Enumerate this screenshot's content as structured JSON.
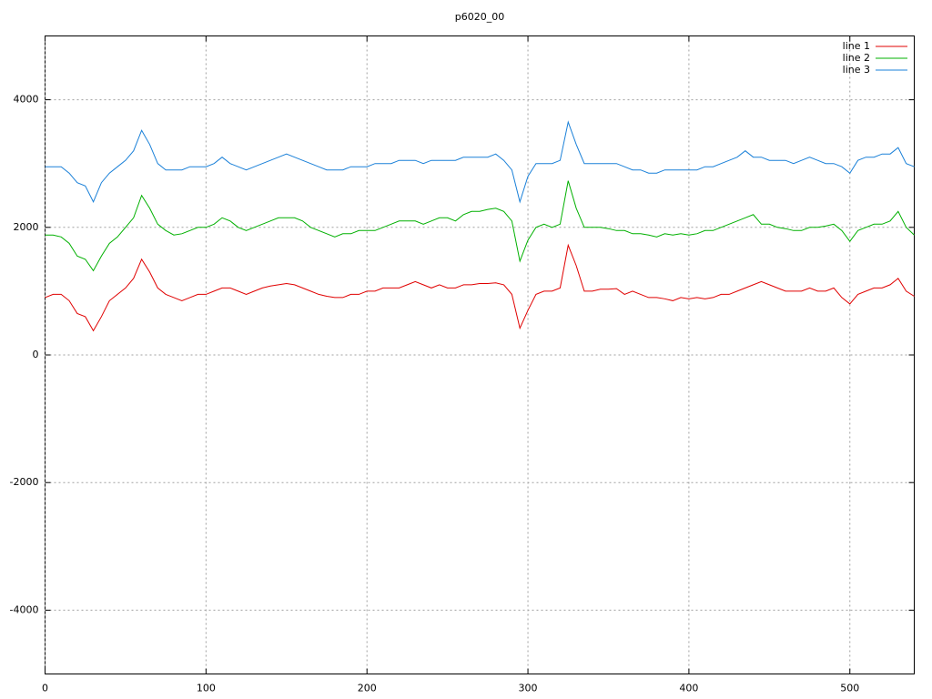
{
  "chart_data": {
    "type": "line",
    "title": "p6020_00",
    "x": [
      0,
      5,
      10,
      15,
      20,
      25,
      30,
      35,
      40,
      45,
      50,
      55,
      60,
      65,
      70,
      75,
      80,
      85,
      90,
      95,
      100,
      105,
      110,
      115,
      120,
      125,
      130,
      135,
      140,
      145,
      150,
      155,
      160,
      165,
      170,
      175,
      180,
      185,
      190,
      195,
      200,
      205,
      210,
      215,
      220,
      225,
      230,
      235,
      240,
      245,
      250,
      255,
      260,
      265,
      270,
      275,
      280,
      285,
      290,
      295,
      300,
      305,
      310,
      315,
      320,
      325,
      330,
      335,
      340,
      345,
      350,
      355,
      360,
      365,
      370,
      375,
      380,
      385,
      390,
      395,
      400,
      405,
      410,
      415,
      420,
      425,
      430,
      435,
      440,
      445,
      450,
      455,
      460,
      465,
      470,
      475,
      480,
      485,
      490,
      495,
      500,
      505,
      510,
      515,
      520,
      525,
      530,
      535,
      540
    ],
    "series": [
      {
        "name": "line 1",
        "color": "#e00000",
        "values": [
          900,
          950,
          950,
          850,
          650,
          600,
          380,
          600,
          850,
          950,
          1050,
          1200,
          1500,
          1300,
          1050,
          950,
          900,
          850,
          900,
          950,
          950,
          1000,
          1050,
          1050,
          1000,
          950,
          1000,
          1050,
          1080,
          1100,
          1120,
          1100,
          1050,
          1000,
          950,
          920,
          900,
          900,
          950,
          950,
          1000,
          1000,
          1050,
          1050,
          1050,
          1100,
          1150,
          1100,
          1050,
          1100,
          1050,
          1050,
          1100,
          1100,
          1120,
          1120,
          1130,
          1100,
          950,
          420,
          700,
          950,
          1000,
          1000,
          1050,
          1720,
          1400,
          1000,
          1000,
          1030,
          1030,
          1040,
          950,
          1000,
          950,
          900,
          900,
          880,
          850,
          900,
          880,
          900,
          880,
          900,
          950,
          950,
          1000,
          1050,
          1100,
          1150,
          1100,
          1050,
          1000,
          1000,
          1000,
          1050,
          1000,
          1000,
          1050,
          900,
          800,
          950,
          1000,
          1050,
          1050,
          1100,
          1200,
          1000,
          920
        ]
      },
      {
        "name": "line 2",
        "color": "#00b000",
        "values": [
          1880,
          1880,
          1850,
          1750,
          1550,
          1500,
          1320,
          1550,
          1750,
          1850,
          2000,
          2150,
          2500,
          2300,
          2050,
          1950,
          1880,
          1900,
          1950,
          2000,
          2000,
          2050,
          2150,
          2100,
          2000,
          1950,
          2000,
          2050,
          2100,
          2150,
          2150,
          2150,
          2100,
          2000,
          1950,
          1900,
          1850,
          1900,
          1900,
          1950,
          1950,
          1950,
          2000,
          2050,
          2100,
          2100,
          2100,
          2050,
          2100,
          2150,
          2150,
          2100,
          2200,
          2250,
          2250,
          2280,
          2300,
          2250,
          2100,
          1470,
          1800,
          2000,
          2050,
          2000,
          2050,
          2730,
          2300,
          2000,
          2000,
          2000,
          1980,
          1950,
          1950,
          1900,
          1900,
          1880,
          1850,
          1900,
          1880,
          1900,
          1880,
          1900,
          1950,
          1950,
          2000,
          2050,
          2100,
          2150,
          2200,
          2050,
          2050,
          2000,
          1980,
          1950,
          1950,
          2000,
          2000,
          2020,
          2050,
          1950,
          1780,
          1950,
          2000,
          2050,
          2050,
          2100,
          2250,
          2000,
          1880
        ]
      },
      {
        "name": "line 3",
        "color": "#1a80d8",
        "values": [
          2950,
          2950,
          2950,
          2850,
          2700,
          2650,
          2400,
          2700,
          2850,
          2950,
          3050,
          3200,
          3520,
          3300,
          3000,
          2900,
          2900,
          2900,
          2950,
          2950,
          2950,
          3000,
          3100,
          3000,
          2950,
          2900,
          2950,
          3000,
          3050,
          3100,
          3150,
          3100,
          3050,
          3000,
          2950,
          2900,
          2900,
          2900,
          2950,
          2950,
          2950,
          3000,
          3000,
          3000,
          3050,
          3050,
          3050,
          3000,
          3050,
          3050,
          3050,
          3050,
          3100,
          3100,
          3100,
          3100,
          3150,
          3050,
          2900,
          2400,
          2800,
          3000,
          3000,
          3000,
          3050,
          3650,
          3300,
          3000,
          3000,
          3000,
          3000,
          3000,
          2950,
          2900,
          2900,
          2850,
          2850,
          2900,
          2900,
          2900,
          2900,
          2900,
          2950,
          2950,
          3000,
          3050,
          3100,
          3200,
          3100,
          3100,
          3050,
          3050,
          3050,
          3000,
          3050,
          3100,
          3050,
          3000,
          3000,
          2950,
          2850,
          3050,
          3100,
          3100,
          3150,
          3150,
          3250,
          3000,
          2950
        ]
      }
    ],
    "xlim": [
      0,
      540
    ],
    "ylim": [
      -5000,
      5000
    ],
    "xticks": [
      0,
      100,
      200,
      300,
      400,
      500
    ],
    "yticks": [
      -4000,
      -2000,
      0,
      2000,
      4000
    ],
    "grid": true,
    "legend": "top-right"
  }
}
